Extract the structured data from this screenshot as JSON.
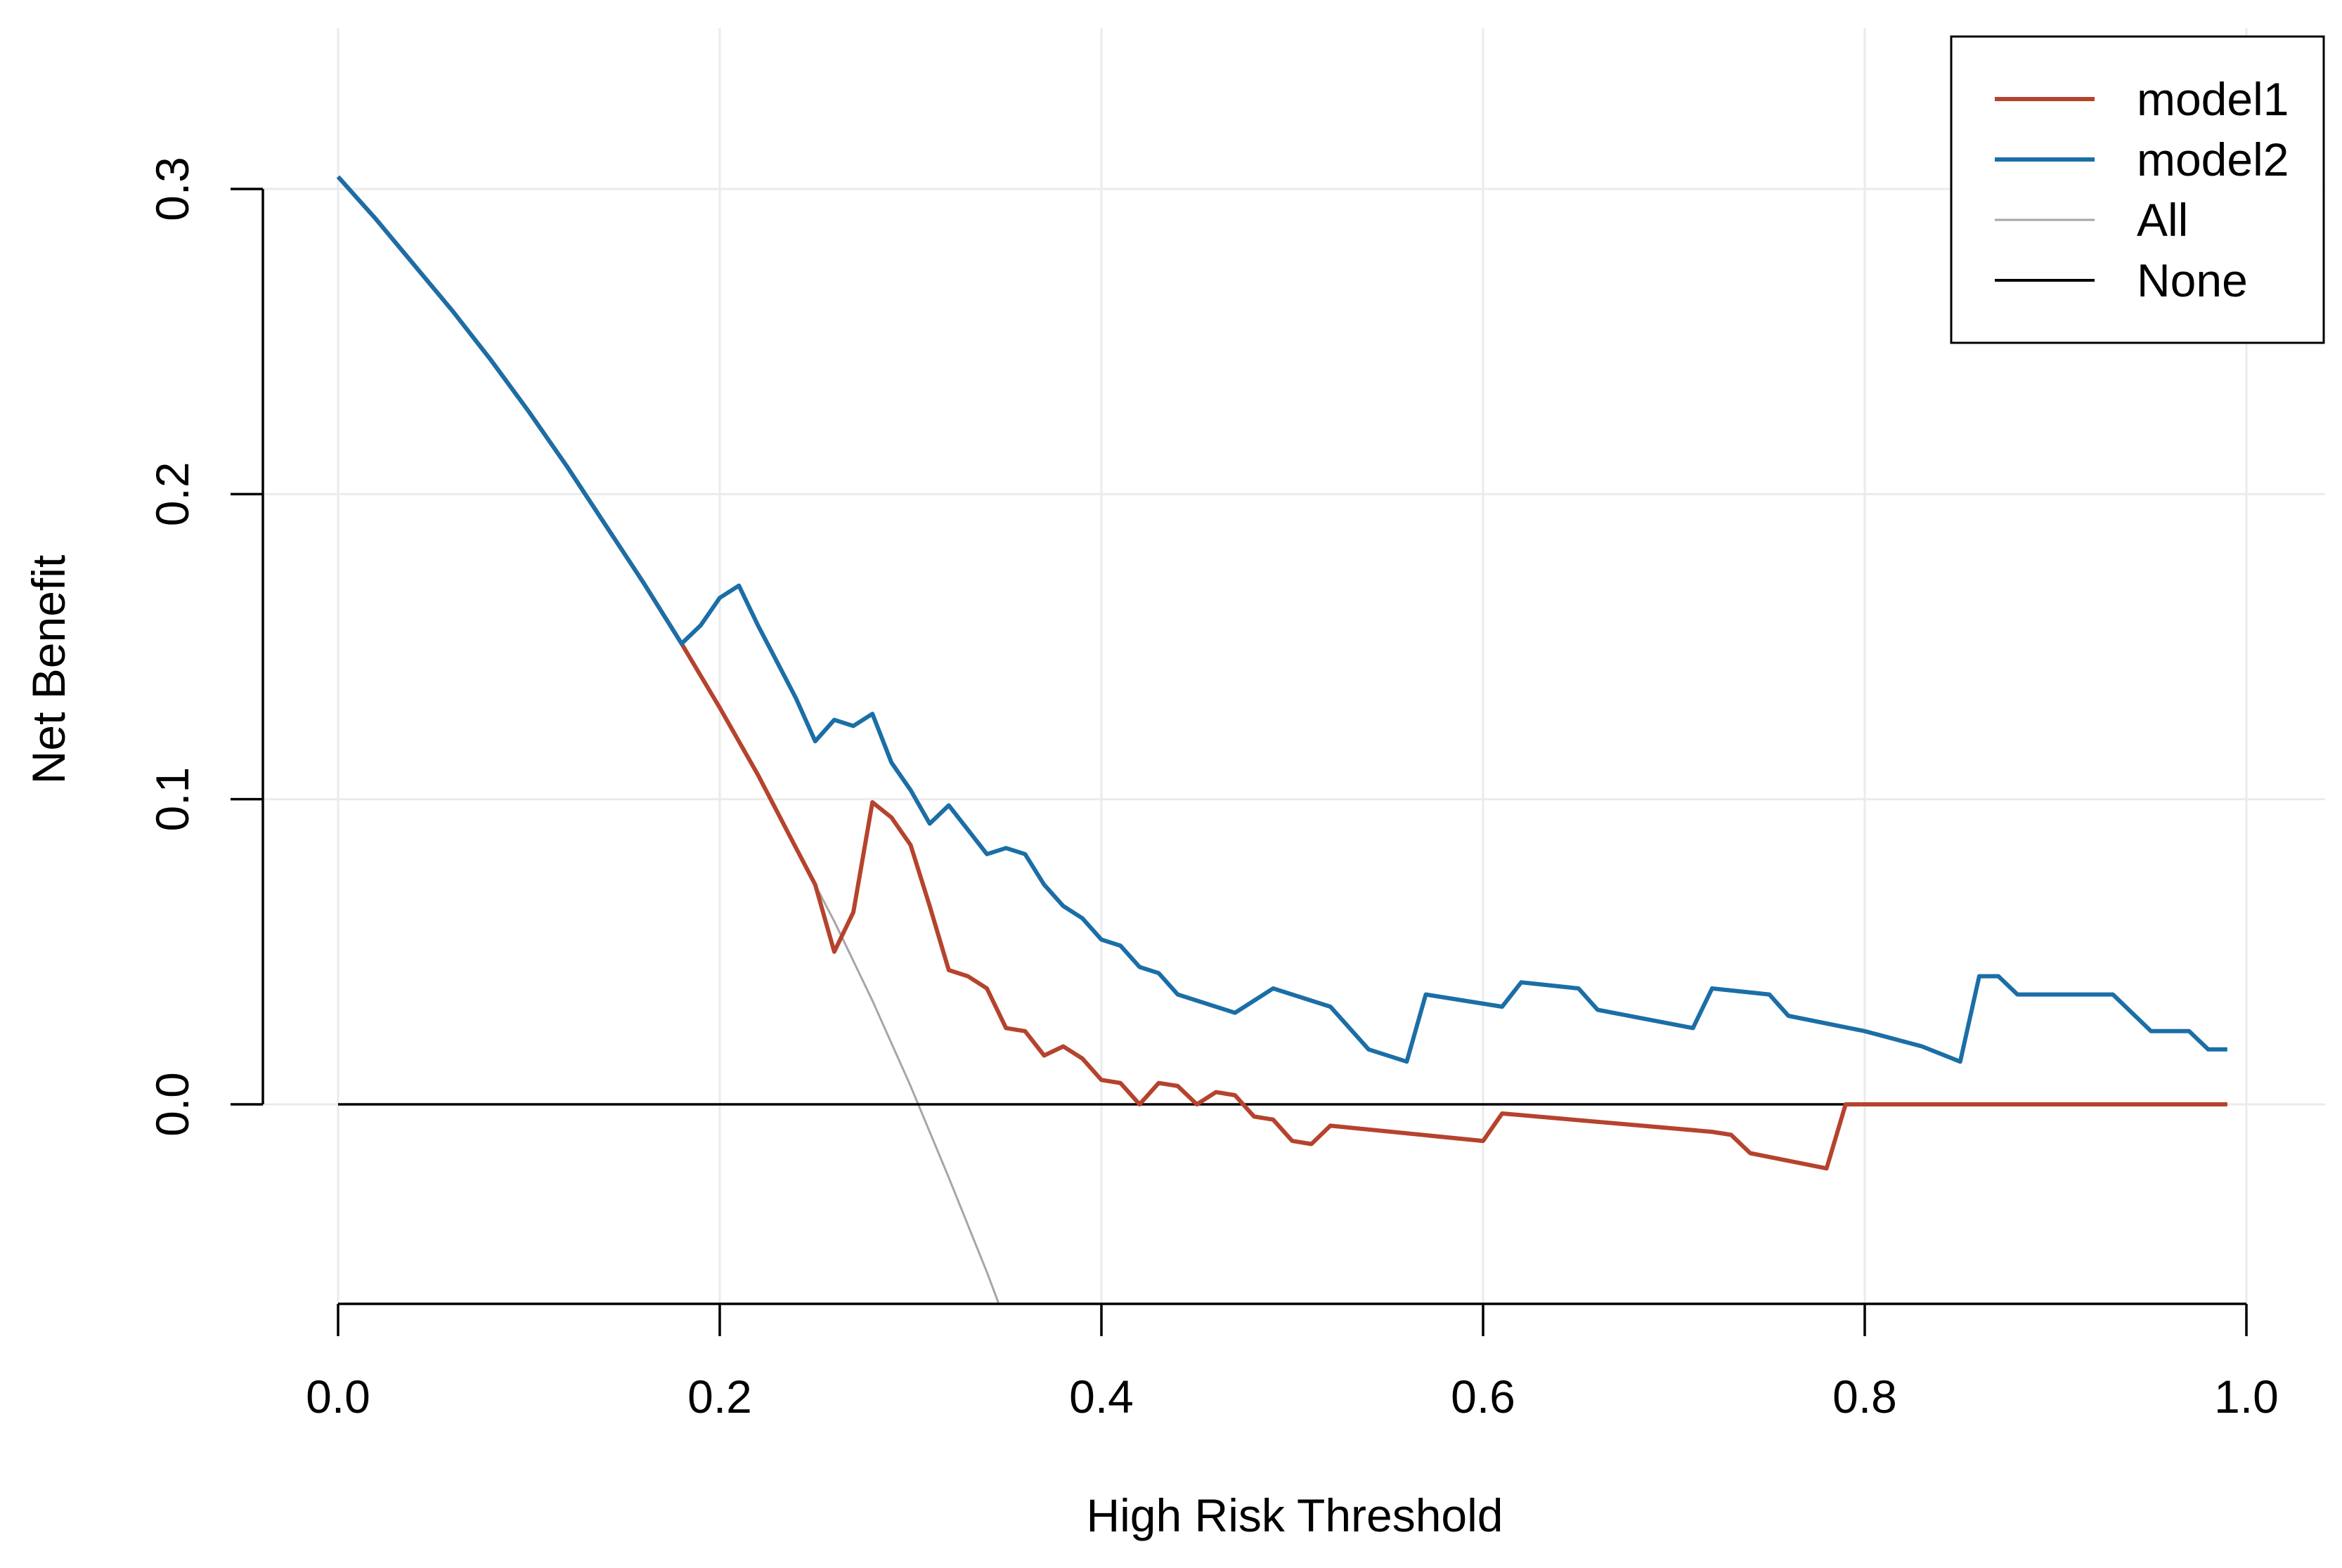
{
  "chart_data": {
    "type": "line",
    "title": "",
    "xlabel": "High Risk Threshold",
    "ylabel": "Net Benefit",
    "xlim": [
      -0.04,
      1.04
    ],
    "ylim": [
      -0.065,
      0.335
    ],
    "x_ticks": [
      0.0,
      0.2,
      0.4,
      0.6,
      0.8,
      1.0
    ],
    "x_tick_labels": [
      "0.0",
      "0.2",
      "0.4",
      "0.6",
      "0.8",
      "1.0"
    ],
    "y_ticks": [
      0.0,
      0.1,
      0.2,
      0.3
    ],
    "y_tick_labels": [
      "0.0",
      "0.1",
      "0.2",
      "0.3"
    ],
    "grid": true,
    "legend_position": "top-right",
    "series": [
      {
        "name": "model1",
        "color": "#B5432D",
        "points": [
          [
            0.0,
            0.304
          ],
          [
            0.02,
            0.29
          ],
          [
            0.04,
            0.275
          ],
          [
            0.06,
            0.26
          ],
          [
            0.08,
            0.244
          ],
          [
            0.1,
            0.227
          ],
          [
            0.12,
            0.209
          ],
          [
            0.14,
            0.19
          ],
          [
            0.16,
            0.171
          ],
          [
            0.18,
            0.151
          ],
          [
            0.2,
            0.13
          ],
          [
            0.22,
            0.108
          ],
          [
            0.24,
            0.084
          ],
          [
            0.25,
            0.072
          ],
          [
            0.26,
            0.05
          ],
          [
            0.27,
            0.063
          ],
          [
            0.28,
            0.099
          ],
          [
            0.29,
            0.094
          ],
          [
            0.3,
            0.085
          ],
          [
            0.31,
            0.065
          ],
          [
            0.32,
            0.044
          ],
          [
            0.33,
            0.042
          ],
          [
            0.34,
            0.038
          ],
          [
            0.35,
            0.025
          ],
          [
            0.36,
            0.024
          ],
          [
            0.37,
            0.016
          ],
          [
            0.38,
            0.019
          ],
          [
            0.39,
            0.015
          ],
          [
            0.4,
            0.008
          ],
          [
            0.41,
            0.007
          ],
          [
            0.42,
            0.0
          ],
          [
            0.43,
            0.007
          ],
          [
            0.44,
            0.006
          ],
          [
            0.45,
            0.0
          ],
          [
            0.46,
            0.004
          ],
          [
            0.47,
            0.003
          ],
          [
            0.48,
            -0.004
          ],
          [
            0.49,
            -0.005
          ],
          [
            0.5,
            -0.012
          ],
          [
            0.51,
            -0.013
          ],
          [
            0.52,
            -0.007
          ],
          [
            0.6,
            -0.012
          ],
          [
            0.61,
            -0.003
          ],
          [
            0.72,
            -0.009
          ],
          [
            0.73,
            -0.01
          ],
          [
            0.74,
            -0.016
          ],
          [
            0.78,
            -0.021
          ],
          [
            0.79,
            0.0
          ],
          [
            0.99,
            0.0
          ]
        ]
      },
      {
        "name": "model2",
        "color": "#1B6EA6",
        "points": [
          [
            0.0,
            0.304
          ],
          [
            0.02,
            0.29
          ],
          [
            0.04,
            0.275
          ],
          [
            0.06,
            0.26
          ],
          [
            0.08,
            0.244
          ],
          [
            0.1,
            0.227
          ],
          [
            0.12,
            0.209
          ],
          [
            0.14,
            0.19
          ],
          [
            0.16,
            0.171
          ],
          [
            0.18,
            0.151
          ],
          [
            0.19,
            0.157
          ],
          [
            0.2,
            0.166
          ],
          [
            0.21,
            0.17
          ],
          [
            0.22,
            0.157
          ],
          [
            0.23,
            0.145
          ],
          [
            0.24,
            0.133
          ],
          [
            0.25,
            0.119
          ],
          [
            0.26,
            0.126
          ],
          [
            0.27,
            0.124
          ],
          [
            0.28,
            0.128
          ],
          [
            0.29,
            0.112
          ],
          [
            0.3,
            0.103
          ],
          [
            0.31,
            0.092
          ],
          [
            0.32,
            0.098
          ],
          [
            0.33,
            0.09
          ],
          [
            0.34,
            0.082
          ],
          [
            0.35,
            0.084
          ],
          [
            0.36,
            0.082
          ],
          [
            0.37,
            0.072
          ],
          [
            0.38,
            0.065
          ],
          [
            0.39,
            0.061
          ],
          [
            0.4,
            0.054
          ],
          [
            0.41,
            0.052
          ],
          [
            0.42,
            0.045
          ],
          [
            0.43,
            0.043
          ],
          [
            0.44,
            0.036
          ],
          [
            0.47,
            0.03
          ],
          [
            0.49,
            0.038
          ],
          [
            0.52,
            0.032
          ],
          [
            0.54,
            0.018
          ],
          [
            0.56,
            0.014
          ],
          [
            0.57,
            0.036
          ],
          [
            0.61,
            0.032
          ],
          [
            0.62,
            0.04
          ],
          [
            0.65,
            0.038
          ],
          [
            0.66,
            0.031
          ],
          [
            0.71,
            0.025
          ],
          [
            0.72,
            0.038
          ],
          [
            0.75,
            0.036
          ],
          [
            0.76,
            0.029
          ],
          [
            0.8,
            0.024
          ],
          [
            0.83,
            0.019
          ],
          [
            0.85,
            0.014
          ],
          [
            0.86,
            0.042
          ],
          [
            0.87,
            0.042
          ],
          [
            0.88,
            0.036
          ],
          [
            0.93,
            0.036
          ],
          [
            0.95,
            0.024
          ],
          [
            0.97,
            0.024
          ],
          [
            0.98,
            0.018
          ],
          [
            0.99,
            0.018
          ]
        ]
      },
      {
        "name": "All",
        "color": "#A6A6A6",
        "points": [
          [
            0.0,
            0.304
          ],
          [
            0.02,
            0.29
          ],
          [
            0.04,
            0.275
          ],
          [
            0.06,
            0.26
          ],
          [
            0.08,
            0.244
          ],
          [
            0.1,
            0.227
          ],
          [
            0.12,
            0.209
          ],
          [
            0.14,
            0.19
          ],
          [
            0.16,
            0.171
          ],
          [
            0.18,
            0.151
          ],
          [
            0.2,
            0.13
          ],
          [
            0.22,
            0.108
          ],
          [
            0.24,
            0.084
          ],
          [
            0.26,
            0.06
          ],
          [
            0.28,
            0.034
          ],
          [
            0.3,
            0.006
          ],
          [
            0.32,
            -0.024
          ],
          [
            0.34,
            -0.055
          ],
          [
            0.346,
            -0.065
          ]
        ]
      },
      {
        "name": "None",
        "color": "#000000",
        "points": [
          [
            0.0,
            0.0
          ],
          [
            0.99,
            0.0
          ]
        ]
      }
    ]
  }
}
